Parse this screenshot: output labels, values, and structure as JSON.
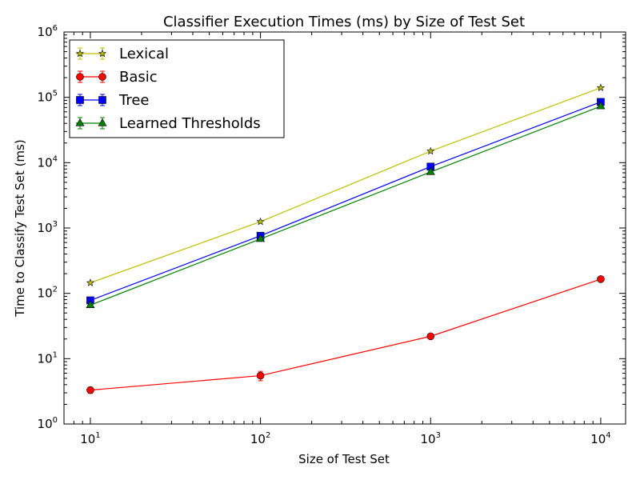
{
  "chart_data": {
    "type": "line",
    "title": "Classifier Execution Times (ms) by Size of Test Set",
    "xlabel": "Size of Test Set",
    "ylabel": "Time to Classify Test Set (ms)",
    "x_scale": "log",
    "y_scale": "log",
    "xlim": [
      7,
      14000
    ],
    "ylim": [
      1,
      1000000
    ],
    "x_ticks": [
      {
        "base": "10",
        "exp": "1",
        "value": 10
      },
      {
        "base": "10",
        "exp": "2",
        "value": 100
      },
      {
        "base": "10",
        "exp": "3",
        "value": 1000
      },
      {
        "base": "10",
        "exp": "4",
        "value": 10000
      }
    ],
    "y_ticks": [
      {
        "base": "10",
        "exp": "0",
        "value": 1
      },
      {
        "base": "10",
        "exp": "1",
        "value": 10
      },
      {
        "base": "10",
        "exp": "2",
        "value": 100
      },
      {
        "base": "10",
        "exp": "3",
        "value": 1000
      },
      {
        "base": "10",
        "exp": "4",
        "value": 10000
      },
      {
        "base": "10",
        "exp": "5",
        "value": 100000
      },
      {
        "base": "10",
        "exp": "6",
        "value": 1000000
      }
    ],
    "grid": false,
    "legend_position": "top-left",
    "x": [
      10,
      100,
      1000,
      10000
    ],
    "series": [
      {
        "name": "Lexical",
        "color": "#bfbf00",
        "marker": "star",
        "values": [
          145,
          1250,
          15000,
          140000
        ],
        "errors": [
          0,
          0,
          0,
          0
        ]
      },
      {
        "name": "Basic",
        "color": "#ff0000",
        "marker": "circle",
        "values": [
          3.3,
          5.5,
          22,
          165
        ],
        "errors": [
          0.35,
          0.9,
          0.6,
          5
        ]
      },
      {
        "name": "Tree",
        "color": "#0000ff",
        "marker": "square",
        "values": [
          78,
          760,
          8700,
          85000
        ],
        "errors": [
          0,
          0,
          0,
          0
        ]
      },
      {
        "name": "Learned Thresholds",
        "color": "#008000",
        "marker": "triangle",
        "values": [
          66,
          680,
          7200,
          73000
        ],
        "errors": [
          0,
          0,
          0,
          0
        ]
      }
    ]
  }
}
